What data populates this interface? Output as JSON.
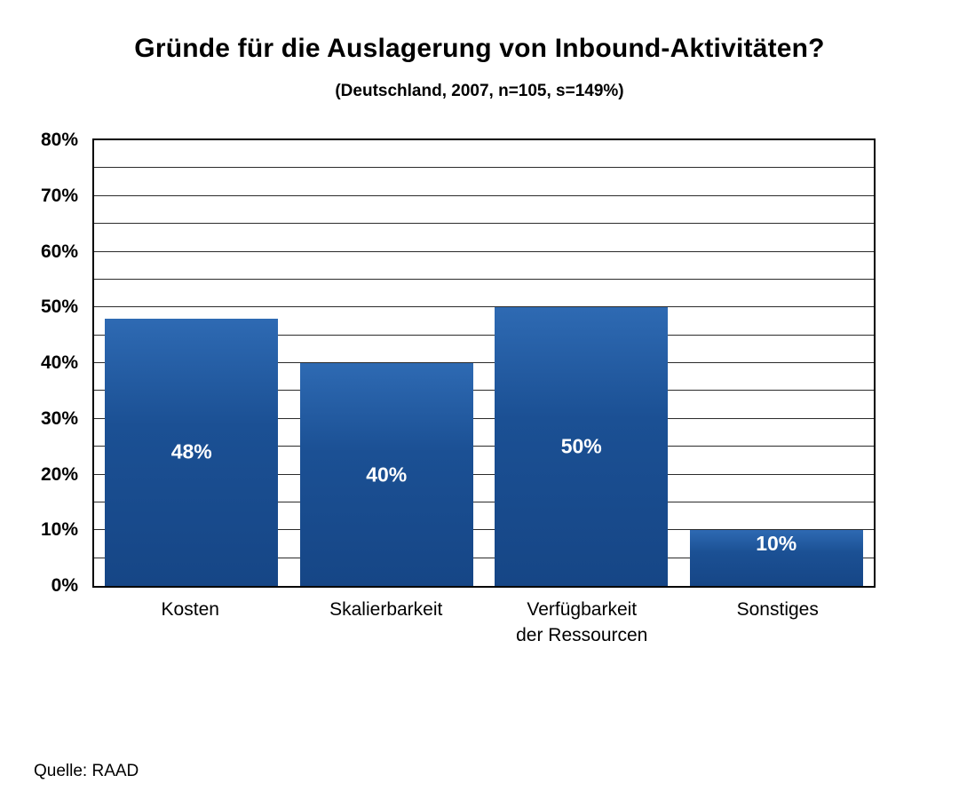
{
  "chart_data": {
    "type": "bar",
    "title": "Gründe für die Auslagerung von Inbound-Aktivitäten?",
    "subtitle": "(Deutschland, 2007, n=105, s=149%)",
    "categories": [
      "Kosten",
      "Skalierbarkeit",
      "Verfügbarkeit\nder Ressourcen",
      "Sonstiges"
    ],
    "values": [
      48,
      40,
      50,
      10
    ],
    "bar_labels": [
      "48%",
      "40%",
      "50%",
      "10%"
    ],
    "xlabel": "",
    "ylabel": "",
    "ylim": [
      0,
      80
    ],
    "y_tick_step": 10,
    "y_tick_labels": [
      "0%",
      "10%",
      "20%",
      "30%",
      "40%",
      "50%",
      "60%",
      "70%",
      "80%"
    ],
    "gridline_step": 5,
    "grid": "on",
    "legend_position": "none",
    "colors": {
      "bar_gradient_top": "#2e6ab3",
      "bar_gradient_bottom": "#164686",
      "bar_value_text": "#ffffff",
      "gridline": "#2b2b2b",
      "plot_border": "#000000",
      "text": "#000000",
      "background": "#ffffff"
    }
  },
  "source": {
    "label": "Quelle: RAAD"
  }
}
